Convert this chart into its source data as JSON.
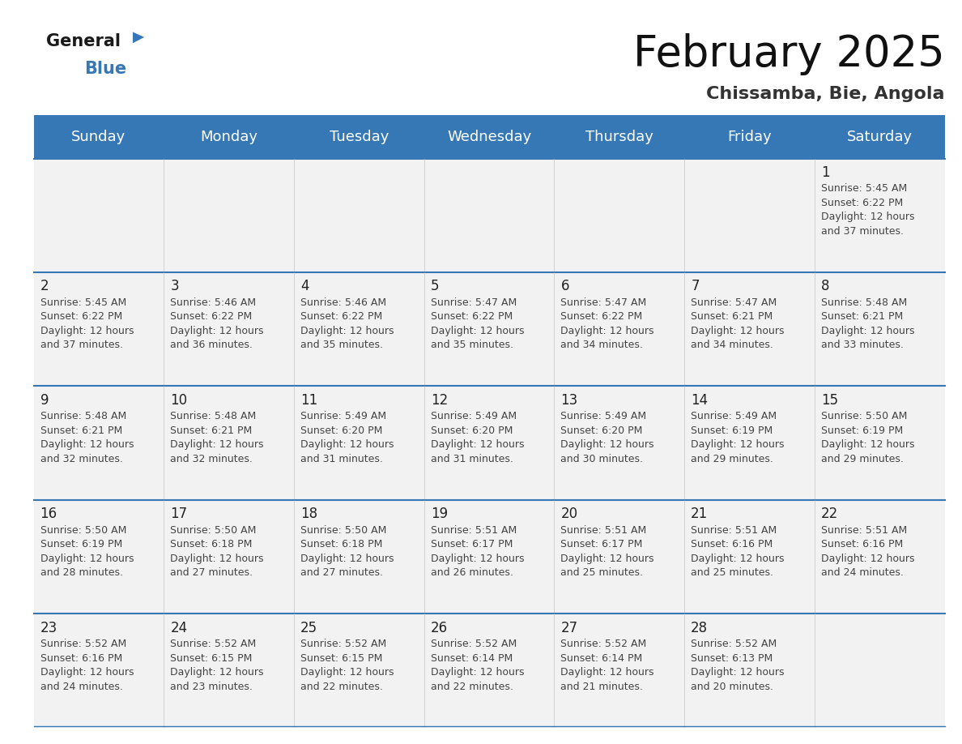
{
  "title": "February 2025",
  "subtitle": "Chissamba, Bie, Angola",
  "header_color": "#3578b5",
  "header_text_color": "#ffffff",
  "cell_bg_color": "#f2f2f2",
  "border_color": "#3578b5",
  "days_of_week": [
    "Sunday",
    "Monday",
    "Tuesday",
    "Wednesday",
    "Thursday",
    "Friday",
    "Saturday"
  ],
  "weeks": [
    [
      null,
      null,
      null,
      null,
      null,
      null,
      {
        "day": 1,
        "sunrise": "5:45 AM",
        "sunset": "6:22 PM",
        "daylight_line1": "Daylight: 12 hours",
        "daylight_line2": "and 37 minutes."
      }
    ],
    [
      {
        "day": 2,
        "sunrise": "5:45 AM",
        "sunset": "6:22 PM",
        "daylight_line1": "Daylight: 12 hours",
        "daylight_line2": "and 37 minutes."
      },
      {
        "day": 3,
        "sunrise": "5:46 AM",
        "sunset": "6:22 PM",
        "daylight_line1": "Daylight: 12 hours",
        "daylight_line2": "and 36 minutes."
      },
      {
        "day": 4,
        "sunrise": "5:46 AM",
        "sunset": "6:22 PM",
        "daylight_line1": "Daylight: 12 hours",
        "daylight_line2": "and 35 minutes."
      },
      {
        "day": 5,
        "sunrise": "5:47 AM",
        "sunset": "6:22 PM",
        "daylight_line1": "Daylight: 12 hours",
        "daylight_line2": "and 35 minutes."
      },
      {
        "day": 6,
        "sunrise": "5:47 AM",
        "sunset": "6:22 PM",
        "daylight_line1": "Daylight: 12 hours",
        "daylight_line2": "and 34 minutes."
      },
      {
        "day": 7,
        "sunrise": "5:47 AM",
        "sunset": "6:21 PM",
        "daylight_line1": "Daylight: 12 hours",
        "daylight_line2": "and 34 minutes."
      },
      {
        "day": 8,
        "sunrise": "5:48 AM",
        "sunset": "6:21 PM",
        "daylight_line1": "Daylight: 12 hours",
        "daylight_line2": "and 33 minutes."
      }
    ],
    [
      {
        "day": 9,
        "sunrise": "5:48 AM",
        "sunset": "6:21 PM",
        "daylight_line1": "Daylight: 12 hours",
        "daylight_line2": "and 32 minutes."
      },
      {
        "day": 10,
        "sunrise": "5:48 AM",
        "sunset": "6:21 PM",
        "daylight_line1": "Daylight: 12 hours",
        "daylight_line2": "and 32 minutes."
      },
      {
        "day": 11,
        "sunrise": "5:49 AM",
        "sunset": "6:20 PM",
        "daylight_line1": "Daylight: 12 hours",
        "daylight_line2": "and 31 minutes."
      },
      {
        "day": 12,
        "sunrise": "5:49 AM",
        "sunset": "6:20 PM",
        "daylight_line1": "Daylight: 12 hours",
        "daylight_line2": "and 31 minutes."
      },
      {
        "day": 13,
        "sunrise": "5:49 AM",
        "sunset": "6:20 PM",
        "daylight_line1": "Daylight: 12 hours",
        "daylight_line2": "and 30 minutes."
      },
      {
        "day": 14,
        "sunrise": "5:49 AM",
        "sunset": "6:19 PM",
        "daylight_line1": "Daylight: 12 hours",
        "daylight_line2": "and 29 minutes."
      },
      {
        "day": 15,
        "sunrise": "5:50 AM",
        "sunset": "6:19 PM",
        "daylight_line1": "Daylight: 12 hours",
        "daylight_line2": "and 29 minutes."
      }
    ],
    [
      {
        "day": 16,
        "sunrise": "5:50 AM",
        "sunset": "6:19 PM",
        "daylight_line1": "Daylight: 12 hours",
        "daylight_line2": "and 28 minutes."
      },
      {
        "day": 17,
        "sunrise": "5:50 AM",
        "sunset": "6:18 PM",
        "daylight_line1": "Daylight: 12 hours",
        "daylight_line2": "and 27 minutes."
      },
      {
        "day": 18,
        "sunrise": "5:50 AM",
        "sunset": "6:18 PM",
        "daylight_line1": "Daylight: 12 hours",
        "daylight_line2": "and 27 minutes."
      },
      {
        "day": 19,
        "sunrise": "5:51 AM",
        "sunset": "6:17 PM",
        "daylight_line1": "Daylight: 12 hours",
        "daylight_line2": "and 26 minutes."
      },
      {
        "day": 20,
        "sunrise": "5:51 AM",
        "sunset": "6:17 PM",
        "daylight_line1": "Daylight: 12 hours",
        "daylight_line2": "and 25 minutes."
      },
      {
        "day": 21,
        "sunrise": "5:51 AM",
        "sunset": "6:16 PM",
        "daylight_line1": "Daylight: 12 hours",
        "daylight_line2": "and 25 minutes."
      },
      {
        "day": 22,
        "sunrise": "5:51 AM",
        "sunset": "6:16 PM",
        "daylight_line1": "Daylight: 12 hours",
        "daylight_line2": "and 24 minutes."
      }
    ],
    [
      {
        "day": 23,
        "sunrise": "5:52 AM",
        "sunset": "6:16 PM",
        "daylight_line1": "Daylight: 12 hours",
        "daylight_line2": "and 24 minutes."
      },
      {
        "day": 24,
        "sunrise": "5:52 AM",
        "sunset": "6:15 PM",
        "daylight_line1": "Daylight: 12 hours",
        "daylight_line2": "and 23 minutes."
      },
      {
        "day": 25,
        "sunrise": "5:52 AM",
        "sunset": "6:15 PM",
        "daylight_line1": "Daylight: 12 hours",
        "daylight_line2": "and 22 minutes."
      },
      {
        "day": 26,
        "sunrise": "5:52 AM",
        "sunset": "6:14 PM",
        "daylight_line1": "Daylight: 12 hours",
        "daylight_line2": "and 22 minutes."
      },
      {
        "day": 27,
        "sunrise": "5:52 AM",
        "sunset": "6:14 PM",
        "daylight_line1": "Daylight: 12 hours",
        "daylight_line2": "and 21 minutes."
      },
      {
        "day": 28,
        "sunrise": "5:52 AM",
        "sunset": "6:13 PM",
        "daylight_line1": "Daylight: 12 hours",
        "daylight_line2": "and 20 minutes."
      },
      null
    ]
  ],
  "logo_general_color": "#1a1a1a",
  "logo_blue_color": "#3578b5",
  "logo_triangle_color": "#3578b5",
  "title_fontsize": 38,
  "subtitle_fontsize": 16,
  "header_fontsize": 13,
  "day_num_fontsize": 12,
  "cell_text_fontsize": 9
}
